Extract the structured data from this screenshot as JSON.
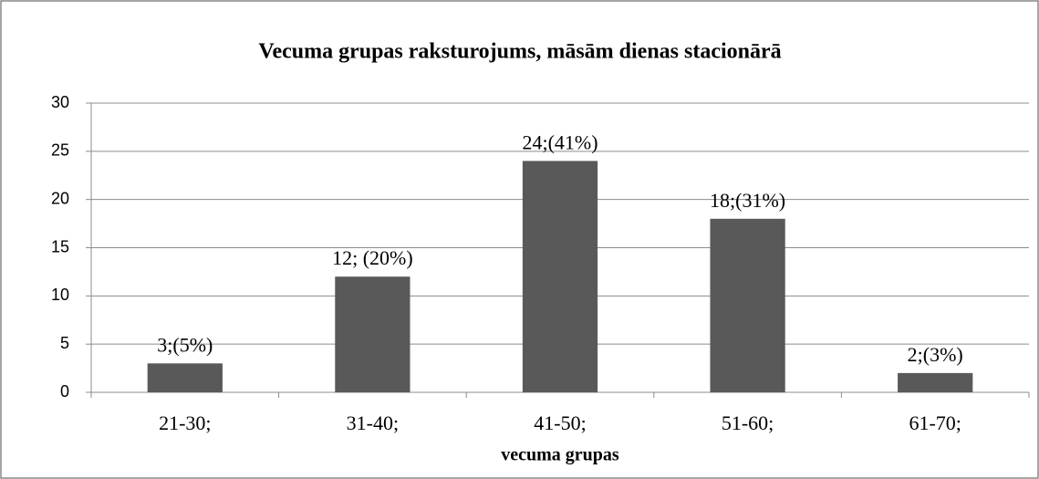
{
  "chart_data": {
    "type": "bar",
    "title": "Vecuma grupas raksturojums, māsām dienas stacionārā",
    "categories": [
      "21-30;",
      "31-40;",
      "41-50;",
      "51-60;",
      "61-70;"
    ],
    "values": [
      3,
      12,
      24,
      18,
      2
    ],
    "value_labels": [
      "3;(5%)",
      "12; (20%)",
      "24;(41%)",
      "18;(31%)",
      "2;(3%)"
    ],
    "color": "#595959",
    "x_label": "vecuma grupas",
    "ylim": [
      0,
      30
    ],
    "yticks": [
      0,
      5,
      10,
      15,
      20,
      25,
      30
    ],
    "grid": true
  }
}
